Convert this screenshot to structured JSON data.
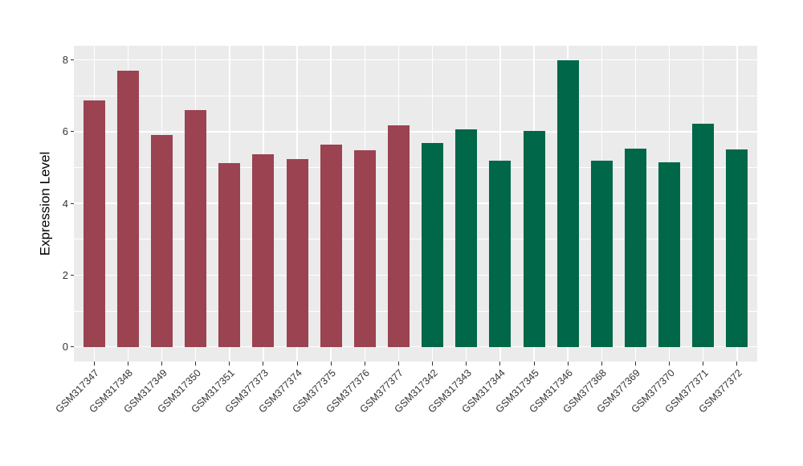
{
  "chart_data": {
    "type": "bar",
    "title": "",
    "xlabel": "",
    "ylabel": "Expression Level",
    "categories": [
      "GSM317347",
      "GSM317348",
      "GSM317349",
      "GSM317350",
      "GSM317351",
      "GSM377373",
      "GSM377374",
      "GSM377375",
      "GSM377376",
      "GSM377377",
      "GSM317342",
      "GSM317343",
      "GSM317344",
      "GSM317345",
      "GSM317346",
      "GSM377368",
      "GSM377369",
      "GSM377370",
      "GSM377371",
      "GSM377372"
    ],
    "values": [
      6.87,
      7.7,
      5.91,
      6.6,
      5.13,
      5.37,
      5.23,
      5.64,
      5.48,
      6.18,
      5.68,
      6.06,
      5.19,
      6.02,
      7.98,
      5.2,
      5.52,
      5.15,
      6.22,
      5.51
    ],
    "bar_colors": [
      "#9B4350",
      "#9B4350",
      "#9B4350",
      "#9B4350",
      "#9B4350",
      "#9B4350",
      "#9B4350",
      "#9B4350",
      "#9B4350",
      "#9B4350",
      "#006749",
      "#006749",
      "#006749",
      "#006749",
      "#006749",
      "#006749",
      "#006749",
      "#006749",
      "#006749",
      "#006749"
    ],
    "group_colors": {
      "left_group": "#9B4350",
      "right_group": "#006749"
    },
    "yticks": [
      0,
      2,
      4,
      6,
      8
    ],
    "minor_yticks": [
      1,
      3,
      5,
      7
    ],
    "ylim": [
      -0.41,
      8.39
    ],
    "x_tick_label_angle": 45,
    "legend_position": "none",
    "grid": "on",
    "panel_background": "#EBEBEB",
    "gridline_color": "#FFFFFF",
    "axis_text_color": "#333333",
    "axis_title_color": "#000000"
  }
}
